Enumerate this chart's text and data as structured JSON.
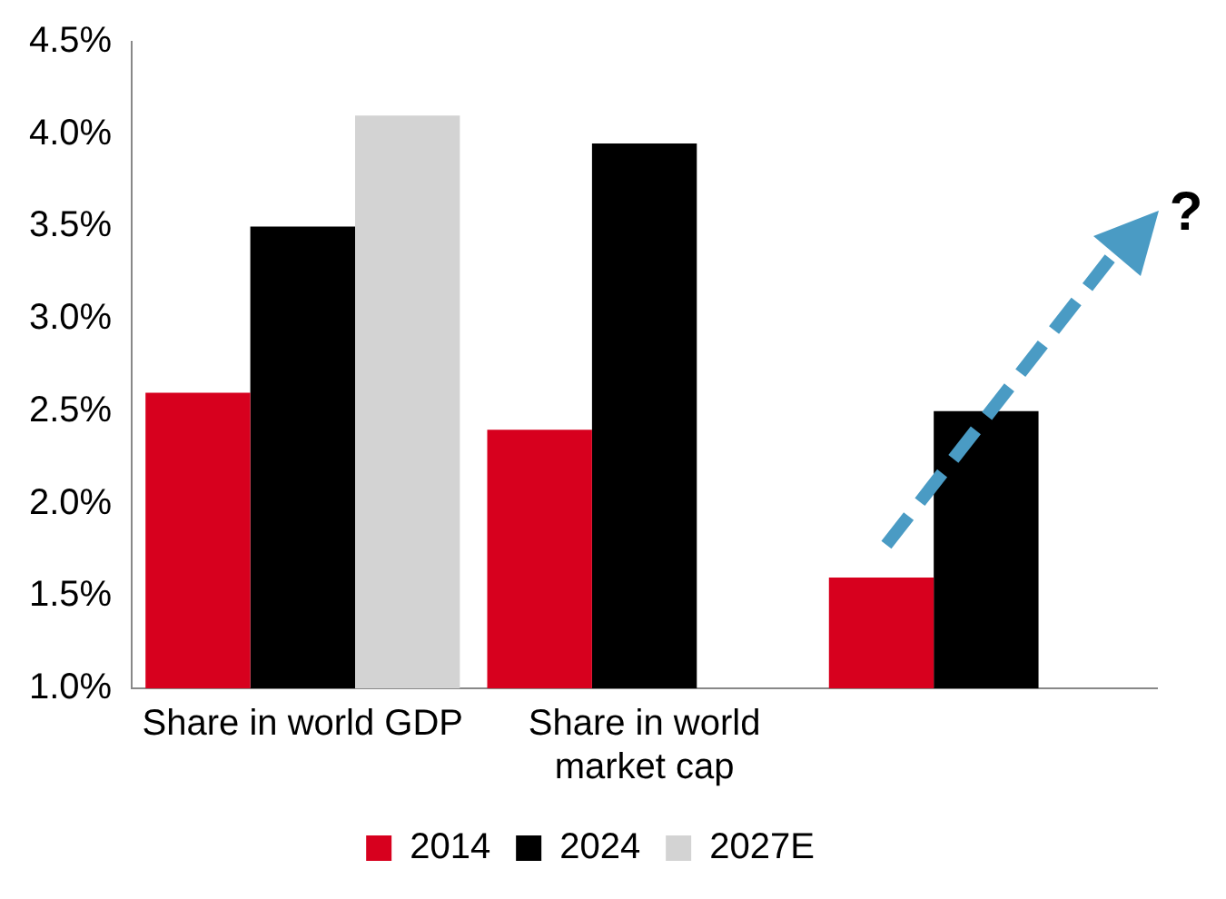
{
  "chart_data": {
    "type": "bar",
    "categories": [
      "Share in world GDP",
      "Share in world market cap",
      null
    ],
    "series": [
      {
        "name": "2014",
        "color": "#d7001e",
        "values": [
          2.6,
          2.4,
          1.6
        ]
      },
      {
        "name": "2024",
        "color": "#000000",
        "values": [
          3.5,
          3.95,
          2.5
        ]
      },
      {
        "name": "2027E",
        "color": "#d3d3d3",
        "values": [
          4.1,
          null,
          null
        ]
      }
    ],
    "ylim": [
      1.0,
      4.5
    ],
    "yticks": [
      {
        "value": 1.0,
        "label": "1.0%"
      },
      {
        "value": 1.5,
        "label": "1.5%"
      },
      {
        "value": 2.0,
        "label": "2.0%"
      },
      {
        "value": 2.5,
        "label": "2.5%"
      },
      {
        "value": 3.0,
        "label": "3.0%"
      },
      {
        "value": 3.5,
        "label": "3.5%"
      },
      {
        "value": 4.0,
        "label": "4.0%"
      },
      {
        "value": 4.5,
        "label": "4.5%"
      }
    ],
    "grid": false,
    "legend": "bottom",
    "annotations": [
      "?"
    ]
  }
}
